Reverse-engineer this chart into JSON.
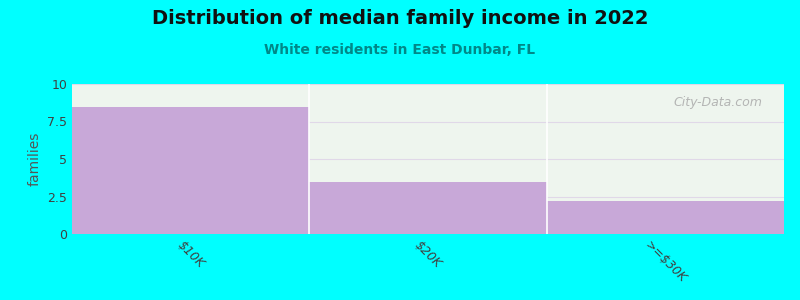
{
  "title": "Distribution of median family income in 2022",
  "subtitle": "White residents in East Dunbar, FL",
  "categories": [
    "$10K",
    "$20K",
    ">=$30K"
  ],
  "values": [
    8.5,
    3.5,
    2.2
  ],
  "bar_color": "#c8a8d8",
  "background_color": "#00ffff",
  "plot_bg_color": "#eef5ee",
  "ylabel": "families",
  "ylim": [
    0,
    10
  ],
  "yticks": [
    0,
    2.5,
    5,
    7.5,
    10
  ],
  "title_fontsize": 14,
  "subtitle_fontsize": 10,
  "subtitle_color": "#008888",
  "title_color": "#111111",
  "bar_width": 1.0,
  "grid_color": "#e0d8e8",
  "watermark": "City-Data.com",
  "tick_label_color": "#404040",
  "ylabel_color": "#555555"
}
